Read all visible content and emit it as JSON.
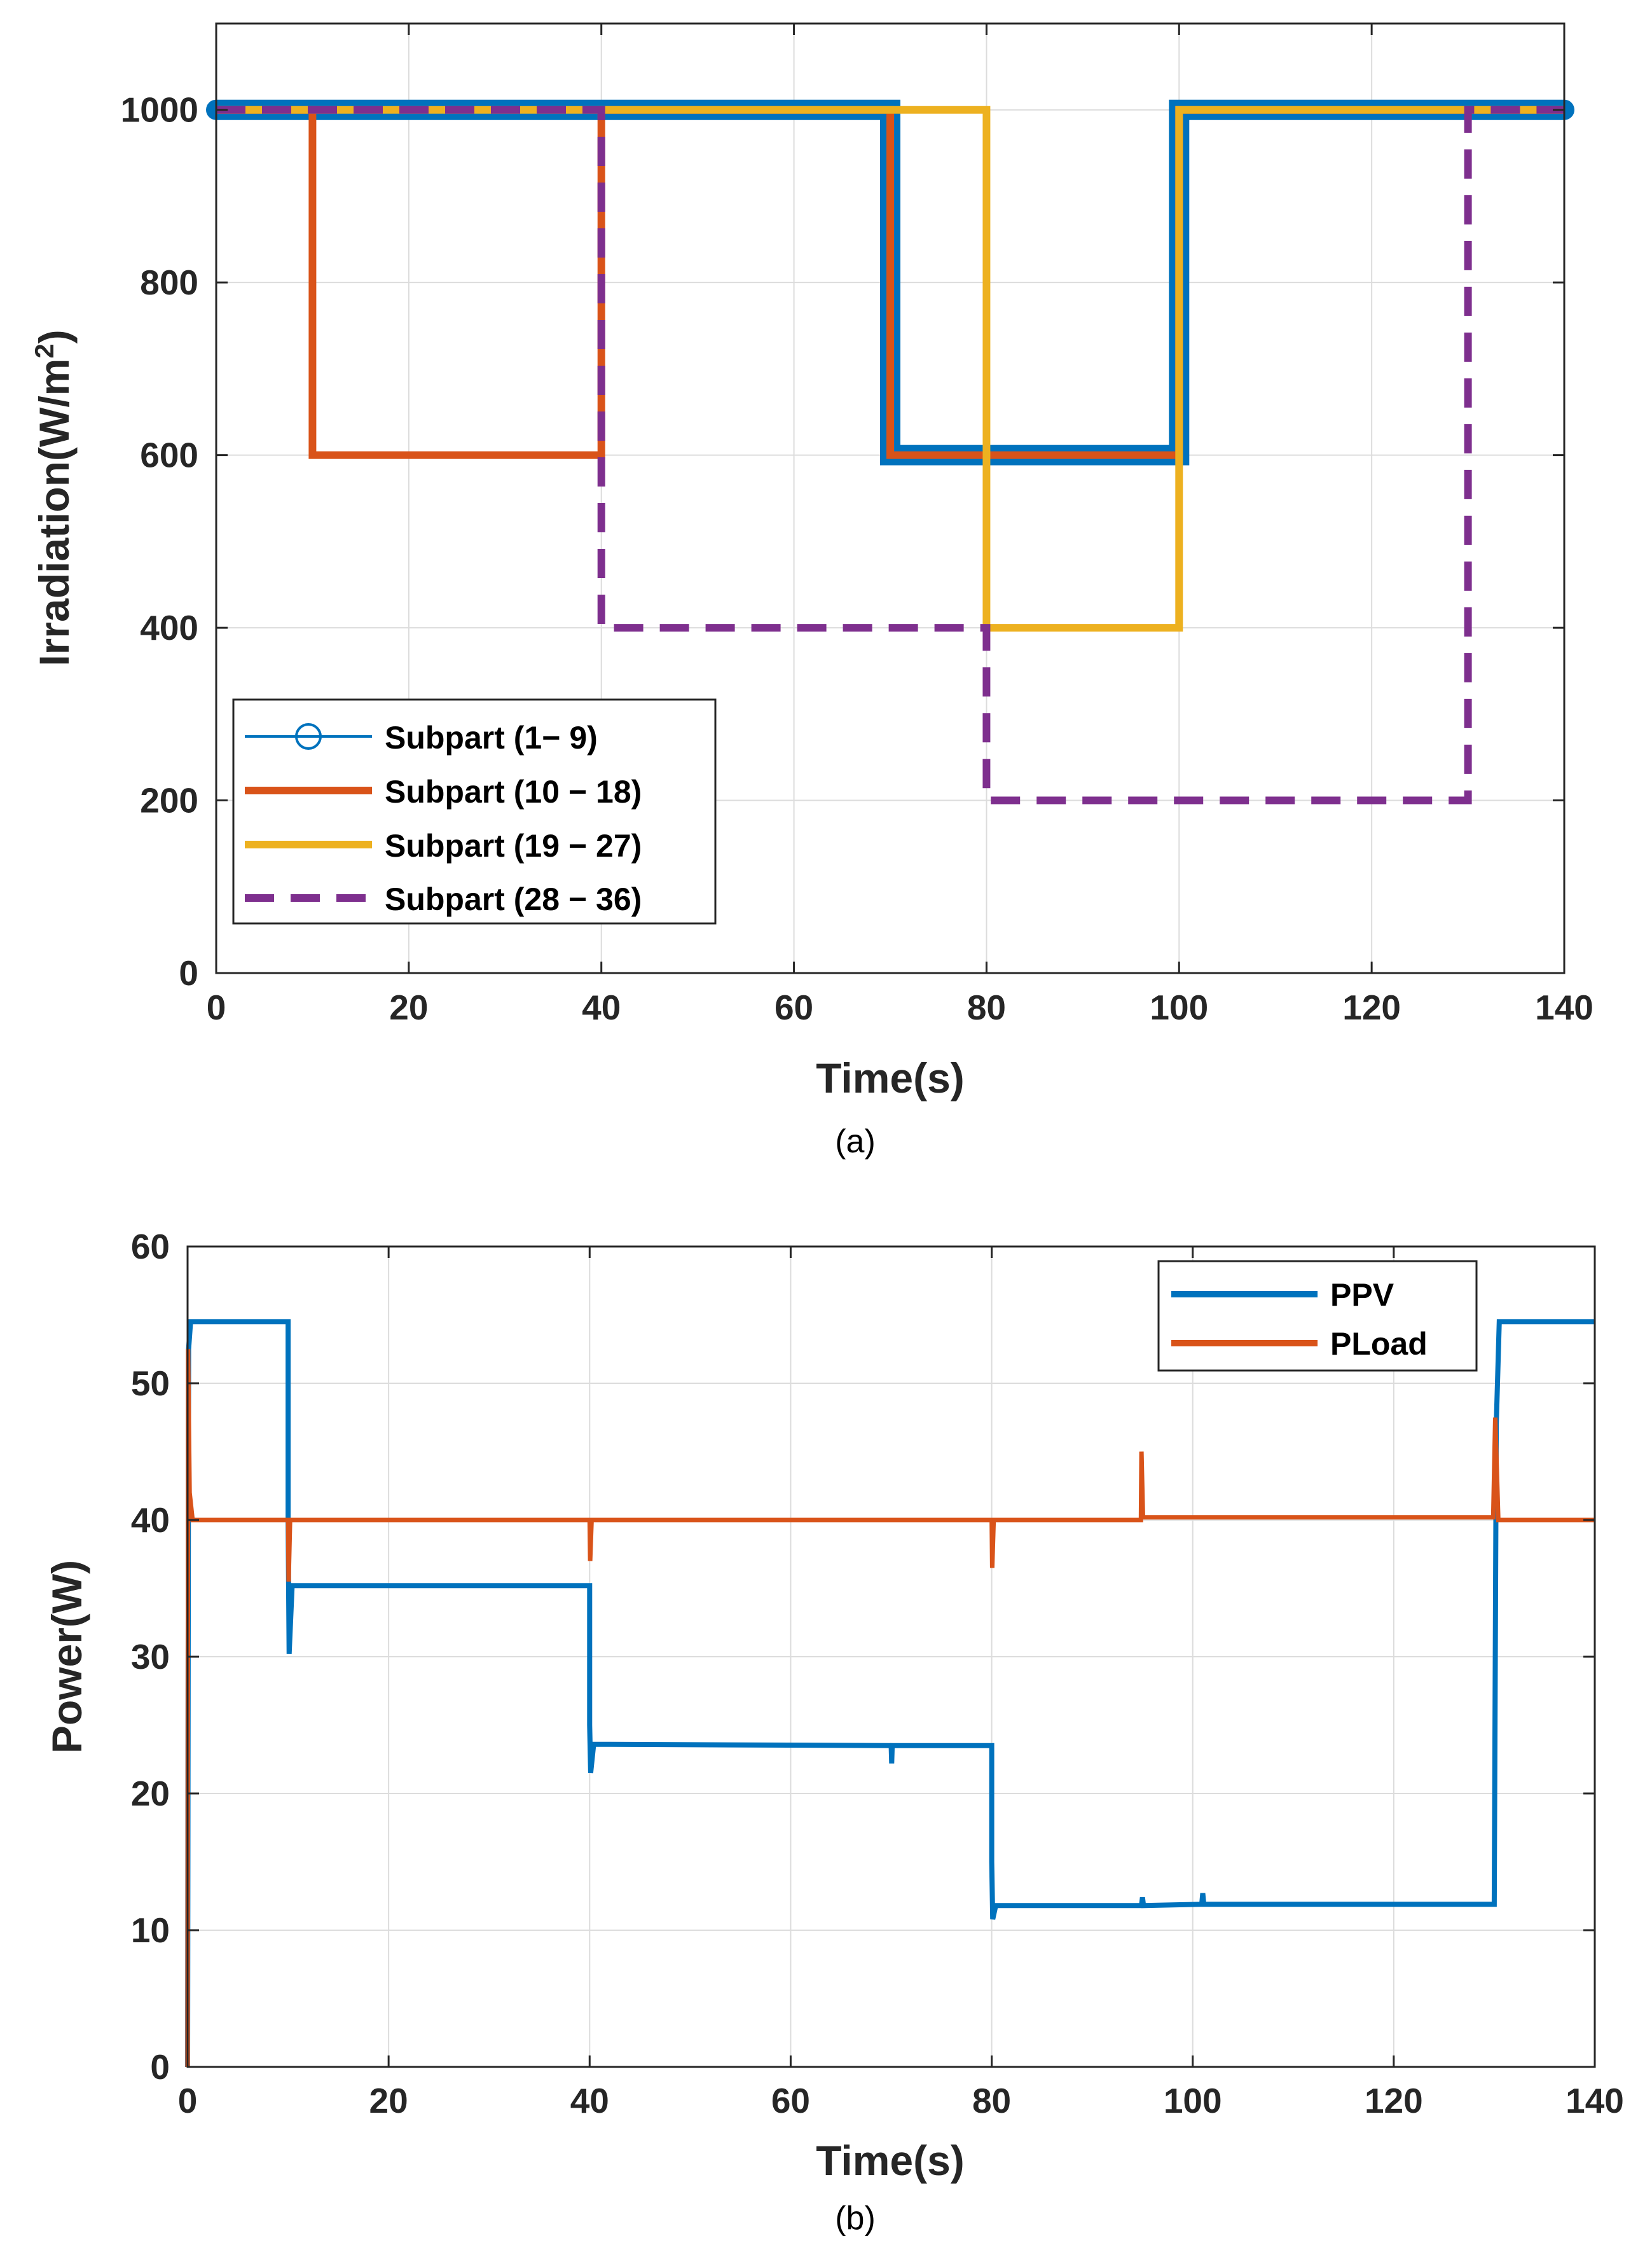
{
  "chart_data": [
    {
      "type": "line",
      "caption": "(a)",
      "xlabel": "Time(s)",
      "ylabel_main": "Irradiation(W/m",
      "ylabel_sup": "2",
      "ylabel_close": ")",
      "xlim": [
        0,
        140
      ],
      "ylim": [
        0,
        1100
      ],
      "xticks": [
        0,
        20,
        40,
        60,
        80,
        100,
        120,
        140
      ],
      "yticks": [
        0,
        200,
        400,
        600,
        800,
        1000
      ],
      "xtick_labels": [
        "0",
        "20",
        "40",
        "60",
        "80",
        "100",
        "120",
        "140"
      ],
      "ytick_labels": [
        "0",
        "200",
        "400",
        "600",
        "800",
        "1000"
      ],
      "grid": true,
      "legend_position": "bottom-left",
      "series": [
        {
          "name": "Subpart (1− 9)",
          "color": "#0072BD",
          "style": "thick-marker",
          "x": [
            0,
            70,
            70,
            100,
            100,
            140
          ],
          "y": [
            1000,
            1000,
            600,
            600,
            1000,
            1000
          ]
        },
        {
          "name": "Subpart (10 − 18)",
          "color": "#D95319",
          "style": "solid",
          "x": [
            0,
            10,
            10,
            40,
            40,
            70,
            70,
            100,
            100,
            140
          ],
          "y": [
            1000,
            1000,
            600,
            600,
            1000,
            1000,
            600,
            600,
            1000,
            1000
          ]
        },
        {
          "name": "Subpart (19 − 27)",
          "color": "#EDB120",
          "style": "solid",
          "x": [
            0,
            80,
            80,
            100,
            100,
            140
          ],
          "y": [
            1000,
            1000,
            400,
            400,
            1000,
            1000
          ]
        },
        {
          "name": "Subpart (28 − 36)",
          "color": "#7E2F8E",
          "style": "dashed",
          "x": [
            0,
            40,
            40,
            80,
            80,
            130,
            130,
            140
          ],
          "y": [
            1000,
            1000,
            400,
            400,
            200,
            200,
            1000,
            1000
          ]
        }
      ]
    },
    {
      "type": "line",
      "caption": "(b)",
      "xlabel": "Time(s)",
      "ylabel": "Power(W)",
      "xlim": [
        0,
        140
      ],
      "ylim": [
        0,
        60
      ],
      "xticks": [
        0,
        20,
        40,
        60,
        80,
        100,
        120,
        140
      ],
      "yticks": [
        0,
        10,
        20,
        30,
        40,
        50,
        60
      ],
      "xtick_labels": [
        "0",
        "20",
        "40",
        "60",
        "80",
        "100",
        "120",
        "140"
      ],
      "ytick_labels": [
        "0",
        "10",
        "20",
        "30",
        "40",
        "50",
        "60"
      ],
      "grid": true,
      "legend_position": "top-right",
      "series": [
        {
          "name": "PPV",
          "color": "#0072BD",
          "style": "solid",
          "x": [
            0,
            0.1,
            0.3,
            10,
            10,
            10.1,
            10.4,
            40,
            40,
            40.1,
            40.4,
            70,
            70.05,
            70.1,
            80,
            80,
            80.1,
            80.4,
            94.9,
            95,
            95.1,
            100.9,
            101,
            101.1,
            130,
            130.2,
            130.5,
            140
          ],
          "y": [
            0,
            52.5,
            54.5,
            54.5,
            40,
            30.2,
            35.2,
            35.2,
            25,
            21.5,
            23.6,
            23.5,
            22.2,
            23.5,
            23.5,
            15,
            10.8,
            11.8,
            11.8,
            12.4,
            11.8,
            11.9,
            12.7,
            11.9,
            11.9,
            47,
            54.5,
            54.5
          ]
        },
        {
          "name": "PLoad",
          "color": "#D95319",
          "style": "solid",
          "x": [
            0,
            0.05,
            0.2,
            0.5,
            10,
            10.05,
            10.2,
            40,
            40.05,
            40.2,
            80,
            80.05,
            80.2,
            94.85,
            94.9,
            95.05,
            129.9,
            130,
            130.1,
            130.4,
            140
          ],
          "y": [
            0,
            52.5,
            42,
            40,
            40,
            35.5,
            40,
            40,
            37,
            40,
            40,
            36.5,
            40,
            40,
            45,
            40.2,
            40.2,
            44,
            47.5,
            40,
            40
          ]
        }
      ]
    }
  ]
}
